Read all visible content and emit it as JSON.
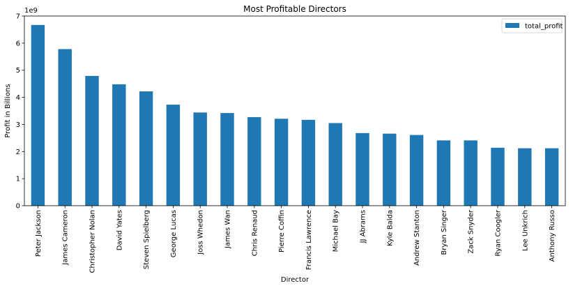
{
  "chart_data": {
    "type": "bar",
    "title": "Most Profitable Directors",
    "xlabel": "Director",
    "ylabel": "Profit in Billions",
    "y_offset_label": "1e9",
    "ylim": [
      0,
      7
    ],
    "yticks": [
      0,
      1,
      2,
      3,
      4,
      5,
      6,
      7
    ],
    "grid": false,
    "legend_position": "top-right",
    "categories": [
      "Peter Jackson",
      "James Cameron",
      "Christopher Nolan",
      "David Yates",
      "Steven Spielberg",
      "George Lucas",
      "Joss Whedon",
      "James Wan",
      "Chris Renaud",
      "Pierre Coffin",
      "Francis Lawrence",
      "Michael Bay",
      "JJ Abrams",
      "Kyle Balda",
      "Andrew Stanton",
      "Bryan Singer",
      "Zack Snyder",
      "Ryan Coogler",
      "Lee Unkrich",
      "Anthony Russo"
    ],
    "series": [
      {
        "name": "total_profit",
        "color": "#1f77b4",
        "values": [
          6.67,
          5.78,
          4.79,
          4.48,
          4.22,
          3.73,
          3.44,
          3.42,
          3.27,
          3.21,
          3.17,
          3.05,
          2.68,
          2.66,
          2.61,
          2.41,
          2.41,
          2.14,
          2.12,
          2.12
        ]
      }
    ]
  }
}
